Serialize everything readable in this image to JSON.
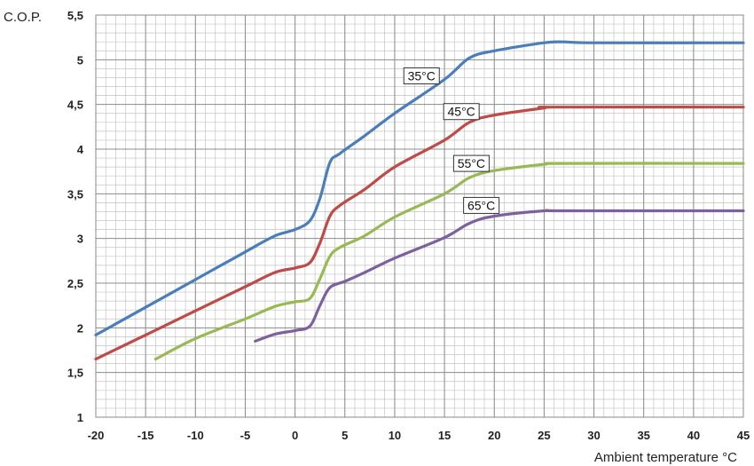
{
  "chart_data": {
    "type": "line",
    "title": "",
    "ylabel": "C.O.P.",
    "xlabel": "Ambient temperature °C",
    "xlim": [
      -20,
      45
    ],
    "ylim": [
      1,
      5.5
    ],
    "x_ticks": [
      -20,
      -15,
      -10,
      -5,
      0,
      5,
      10,
      15,
      20,
      25,
      30,
      35,
      40,
      45
    ],
    "y_ticks": [
      1,
      1.5,
      2,
      2.5,
      3,
      3.5,
      4,
      4.5,
      5,
      5.5
    ],
    "x_tick_labels": [
      "-20",
      "-15",
      "-10",
      "-5",
      "0",
      "5",
      "10",
      "15",
      "20",
      "25",
      "30",
      "35",
      "40",
      "45"
    ],
    "y_tick_labels": [
      "1",
      "1,5",
      "2",
      "2,5",
      "3",
      "3,5",
      "4",
      "4,5",
      "5",
      "5,5"
    ],
    "minor_x_step": 1,
    "minor_y_step": 0.1,
    "grid": true,
    "series": [
      {
        "name": "35°C",
        "color": "#4a7ebb",
        "label_at": [
          12.7,
          4.82
        ],
        "points": [
          [
            -20,
            1.92
          ],
          [
            -15,
            2.23
          ],
          [
            -10,
            2.54
          ],
          [
            -5,
            2.85
          ],
          [
            -2,
            3.03
          ],
          [
            0,
            3.1
          ],
          [
            1.5,
            3.2
          ],
          [
            2.5,
            3.45
          ],
          [
            3.5,
            3.85
          ],
          [
            4.5,
            3.95
          ],
          [
            7,
            4.15
          ],
          [
            10,
            4.4
          ],
          [
            15,
            4.78
          ],
          [
            17.5,
            5.02
          ],
          [
            20,
            5.1
          ],
          [
            25,
            5.19
          ],
          [
            27,
            5.2
          ],
          [
            30,
            5.19
          ],
          [
            45,
            5.19
          ]
        ]
      },
      {
        "name": "45°C",
        "color": "#be4b48",
        "label_at": [
          16.7,
          4.42
        ],
        "points": [
          [
            -20,
            1.65
          ],
          [
            -15,
            1.92
          ],
          [
            -10,
            2.19
          ],
          [
            -5,
            2.46
          ],
          [
            -2,
            2.62
          ],
          [
            0,
            2.67
          ],
          [
            1.5,
            2.73
          ],
          [
            2.5,
            2.95
          ],
          [
            3.5,
            3.25
          ],
          [
            4.5,
            3.37
          ],
          [
            7,
            3.55
          ],
          [
            10,
            3.8
          ],
          [
            15,
            4.1
          ],
          [
            17.5,
            4.3
          ],
          [
            20,
            4.38
          ],
          [
            25,
            4.46
          ],
          [
            26,
            4.47
          ],
          [
            45,
            4.47
          ]
        ]
      },
      {
        "name": "55°C",
        "color": "#98b954",
        "label_at": [
          17.7,
          3.84
        ],
        "points": [
          [
            -14,
            1.65
          ],
          [
            -10,
            1.88
          ],
          [
            -5,
            2.1
          ],
          [
            -2,
            2.24
          ],
          [
            0,
            2.29
          ],
          [
            1.5,
            2.33
          ],
          [
            2.5,
            2.55
          ],
          [
            3.5,
            2.8
          ],
          [
            4.5,
            2.9
          ],
          [
            7,
            3.03
          ],
          [
            10,
            3.24
          ],
          [
            15,
            3.5
          ],
          [
            17.5,
            3.68
          ],
          [
            20,
            3.76
          ],
          [
            25,
            3.83
          ],
          [
            27,
            3.84
          ],
          [
            45,
            3.84
          ]
        ]
      },
      {
        "name": "65°C",
        "color": "#7d60a0",
        "label_at": [
          18.7,
          3.37
        ],
        "points": [
          [
            -4,
            1.85
          ],
          [
            -2,
            1.93
          ],
          [
            0,
            1.97
          ],
          [
            1.5,
            2.02
          ],
          [
            2.5,
            2.25
          ],
          [
            3.5,
            2.45
          ],
          [
            5,
            2.52
          ],
          [
            7,
            2.62
          ],
          [
            10,
            2.78
          ],
          [
            15,
            3.01
          ],
          [
            17.5,
            3.17
          ],
          [
            20,
            3.25
          ],
          [
            25,
            3.31
          ],
          [
            27,
            3.31
          ],
          [
            45,
            3.31
          ]
        ]
      }
    ]
  }
}
